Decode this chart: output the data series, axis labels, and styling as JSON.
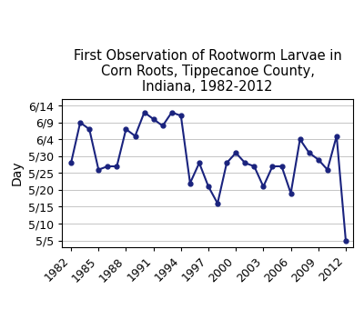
{
  "title": "First Observation of Rootworm Larvae in\nCorn Roots, Tippecanoe County,\nIndiana, 1982-2012",
  "ylabel": "Day",
  "years": [
    1982,
    1983,
    1984,
    1985,
    1986,
    1987,
    1988,
    1989,
    1990,
    1991,
    1992,
    1993,
    1994,
    1995,
    1996,
    1997,
    1998,
    1999,
    2000,
    2001,
    2002,
    2003,
    2004,
    2005,
    2006,
    2007,
    2008,
    2009,
    2010,
    2011,
    2012
  ],
  "days": [
    148,
    160,
    158,
    146,
    147,
    147,
    158,
    156,
    163,
    161,
    159,
    163,
    162,
    142,
    148,
    141,
    136,
    148,
    151,
    148,
    147,
    141,
    147,
    147,
    139,
    155,
    151,
    149,
    146,
    156,
    125
  ],
  "ytick_labels": [
    "5/5",
    "5/10",
    "5/15",
    "5/20",
    "5/25",
    "5/30",
    "6/4",
    "6/9",
    "6/14"
  ],
  "ytick_values": [
    125,
    130,
    135,
    140,
    145,
    150,
    155,
    160,
    165
  ],
  "line_color": "#1a237e",
  "marker": "o",
  "markersize": 3.5,
  "linewidth": 1.5,
  "xlim": [
    1981.0,
    2012.8
  ],
  "ylim": [
    123,
    167
  ],
  "xtick_positions": [
    1982,
    1985,
    1988,
    1991,
    1994,
    1997,
    2000,
    2003,
    2006,
    2009,
    2012
  ],
  "grid_color": "#bbbbbb",
  "background_color": "#ffffff",
  "title_fontsize": 10.5,
  "axis_fontsize": 10,
  "tick_fontsize": 9
}
